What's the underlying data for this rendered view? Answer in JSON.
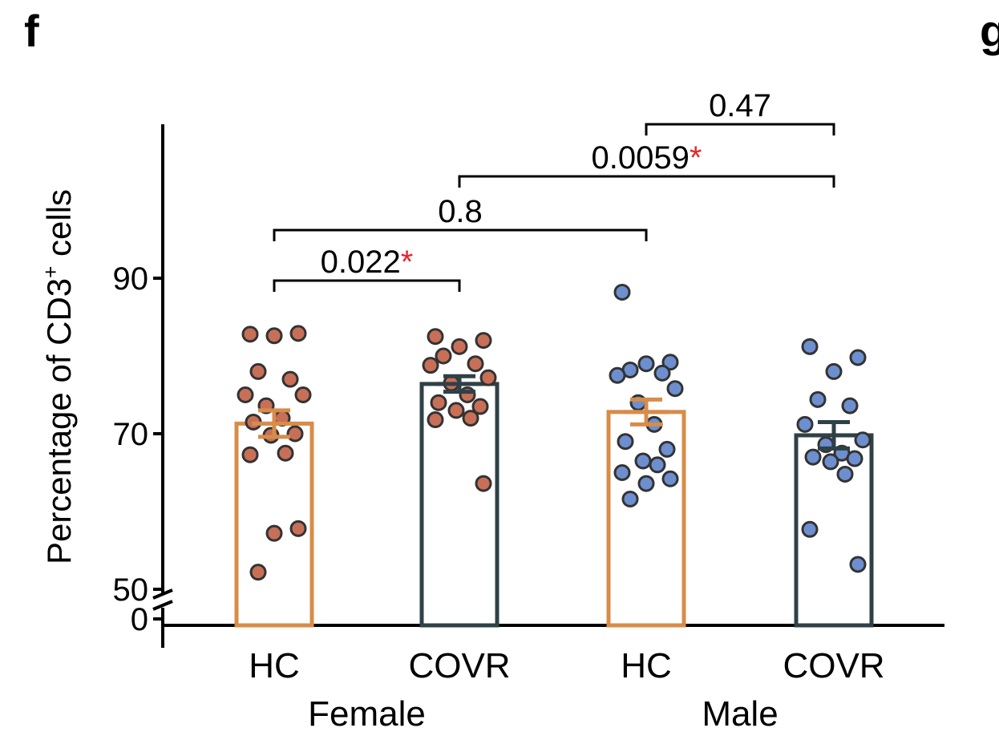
{
  "panel_label": "f",
  "next_panel_label": "g",
  "chart_data": {
    "type": "bar",
    "ylabel": "Percentage of CD3",
    "ylabel_sup": "+",
    "ylabel_suffix": " cells",
    "y_ticks": [
      0,
      50,
      70,
      90
    ],
    "y_tick_labels": [
      "0",
      "50",
      "70",
      "90"
    ],
    "axis_break": "between 0 and 50",
    "categories": [
      "HC",
      "COVR",
      "HC",
      "COVR"
    ],
    "groups": [
      {
        "name": "Female",
        "categories": [
          0,
          1
        ]
      },
      {
        "name": "Male",
        "categories": [
          2,
          3
        ]
      }
    ],
    "colors": {
      "HC_bar": "#d88c49",
      "COVR_bar": "#2f4147",
      "female_points": "#c86f57",
      "male_points": "#6d8fcf",
      "point_edge": "#333333"
    },
    "bars": [
      {
        "category": "HC",
        "group": "Female",
        "mean": 71.3,
        "sem": 1.7
      },
      {
        "category": "COVR",
        "group": "Female",
        "mean": 76.4,
        "sem": 1.0
      },
      {
        "category": "HC",
        "group": "Male",
        "mean": 72.8,
        "sem": 1.6
      },
      {
        "category": "COVR",
        "group": "Male",
        "mean": 69.8,
        "sem": 1.7
      }
    ],
    "points": [
      [
        82.8,
        82.9,
        82.6,
        78.0,
        77.0,
        75.0,
        75.0,
        73.6,
        72.0,
        71.5,
        70.0,
        69.8,
        67.5,
        67.3,
        57.8,
        57.2,
        52.2
      ],
      [
        82.5,
        82.0,
        81.2,
        80.0,
        79.0,
        78.8,
        77.2,
        76.5,
        75.0,
        74.0,
        73.5,
        73.0,
        72.0,
        71.8,
        63.6
      ],
      [
        88.2,
        79.2,
        79.0,
        78.2,
        77.8,
        77.5,
        75.8,
        74.0,
        71.2,
        69.0,
        68.0,
        66.5,
        66.0,
        65.0,
        64.2,
        63.6,
        61.6
      ],
      [
        81.2,
        79.8,
        78.0,
        74.4,
        73.6,
        71.2,
        69.2,
        68.6,
        67.5,
        67.0,
        66.8,
        66.4,
        64.8,
        57.7,
        53.2
      ]
    ],
    "comparisons": [
      {
        "from": 0,
        "to": 1,
        "label": "0.022",
        "significant": true
      },
      {
        "from": 0,
        "to": 2,
        "label": "0.8",
        "significant": false
      },
      {
        "from": 1,
        "to": 3,
        "label": "0.0059",
        "significant": true
      },
      {
        "from": 2,
        "to": 3,
        "label": "0.47",
        "significant": false
      }
    ],
    "significance_marker": "*"
  }
}
